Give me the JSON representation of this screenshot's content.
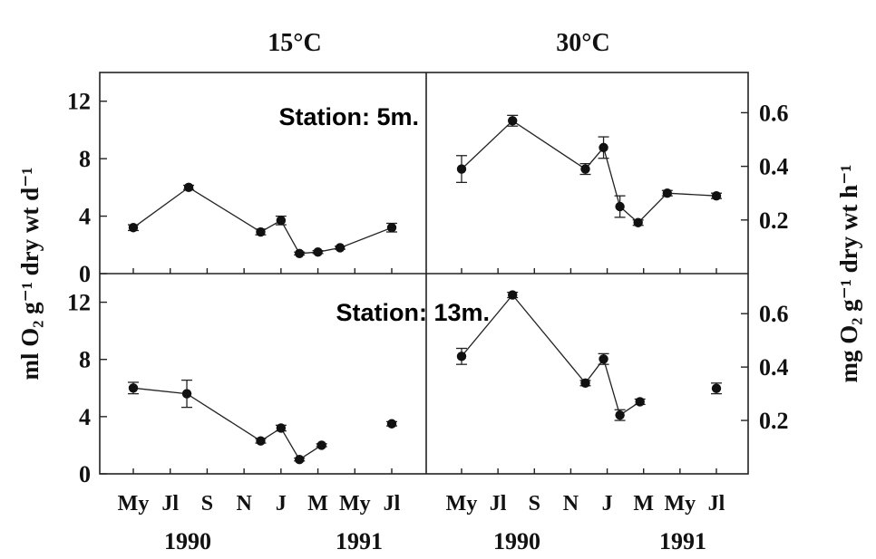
{
  "figure": {
    "column_headers": [
      "15°C",
      "30°C"
    ],
    "left_axis_label": "ml O₂ g⁻¹ dry wt d⁻¹",
    "right_axis_label": "mg O₂ g⁻¹ dry wt h⁻¹",
    "x_tick_labels": [
      "My",
      "Jl",
      "S",
      "N",
      "J",
      "M",
      "My",
      "Jl"
    ],
    "year_labels": [
      "1990",
      "1991"
    ]
  },
  "chart_data": [
    {
      "type": "line",
      "panel": "top-left",
      "title": "15°C",
      "annotation": "",
      "y_axis": "left",
      "ylim": [
        0,
        14
      ],
      "yticks": [
        0,
        4,
        8,
        12
      ],
      "x": [
        0,
        2,
        4,
        6,
        8,
        10,
        12,
        14
      ],
      "x_tick_labels": [
        "My",
        "Jl",
        "S",
        "N",
        "J",
        "M",
        "My",
        "Jl"
      ],
      "series": [
        {
          "points": [
            {
              "month": 0.0,
              "value": 3.2,
              "err": 0.2
            },
            {
              "month": 3.0,
              "value": 6.0,
              "err": 0.15
            },
            {
              "month": 6.9,
              "value": 2.9,
              "err": 0.2
            },
            {
              "month": 8.0,
              "value": 3.7,
              "err": 0.3
            },
            {
              "month": 9.0,
              "value": 1.4,
              "err": 0.1
            },
            {
              "month": 10.0,
              "value": 1.5,
              "err": 0.1
            },
            {
              "month": 11.2,
              "value": 1.8,
              "err": 0.1
            },
            {
              "month": 14.0,
              "value": 3.2,
              "err": 0.3
            }
          ],
          "segments": [
            [
              0,
              7
            ]
          ]
        }
      ]
    },
    {
      "type": "line",
      "panel": "top-right",
      "title": "30°C",
      "annotation": "Station: 5m.",
      "y_axis": "right",
      "ylim": [
        0,
        0.75
      ],
      "yticks": [
        0.2,
        0.4,
        0.6
      ],
      "x": [
        0,
        2,
        4,
        6,
        8,
        10,
        12,
        14
      ],
      "x_tick_labels": [
        "My",
        "Jl",
        "S",
        "N",
        "J",
        "M",
        "My",
        "Jl"
      ],
      "series": [
        {
          "points": [
            {
              "month": 0.0,
              "value": 0.39,
              "err": 0.05
            },
            {
              "month": 2.8,
              "value": 0.57,
              "err": 0.02
            },
            {
              "month": 6.8,
              "value": 0.39,
              "err": 0.02
            },
            {
              "month": 7.8,
              "value": 0.47,
              "err": 0.04
            },
            {
              "month": 8.7,
              "value": 0.25,
              "err": 0.04
            },
            {
              "month": 9.7,
              "value": 0.19,
              "err": 0.01
            },
            {
              "month": 11.3,
              "value": 0.3,
              "err": 0.01
            },
            {
              "month": 14.0,
              "value": 0.29,
              "err": 0.01
            }
          ],
          "segments": [
            [
              0,
              7
            ]
          ]
        }
      ]
    },
    {
      "type": "line",
      "panel": "bottom-left",
      "annotation": "",
      "y_axis": "left",
      "ylim": [
        0,
        14
      ],
      "yticks": [
        0,
        4,
        8,
        12
      ],
      "x": [
        0,
        2,
        4,
        6,
        8,
        10,
        12,
        14
      ],
      "x_tick_labels": [
        "My",
        "Jl",
        "S",
        "N",
        "J",
        "M",
        "My",
        "Jl"
      ],
      "series": [
        {
          "points": [
            {
              "month": 0.0,
              "value": 6.0,
              "err": 0.4
            },
            {
              "month": 2.9,
              "value": 5.6,
              "err": 0.95
            },
            {
              "month": 6.9,
              "value": 2.3,
              "err": 0.15
            },
            {
              "month": 8.0,
              "value": 3.2,
              "err": 0.2
            },
            {
              "month": 9.0,
              "value": 1.0,
              "err": 0.1
            },
            {
              "month": 10.2,
              "value": 2.0,
              "err": 0.1
            },
            {
              "month": 14.0,
              "value": 3.5,
              "err": 0.15
            }
          ],
          "segments": [
            [
              0,
              5
            ]
          ]
        }
      ]
    },
    {
      "type": "line",
      "panel": "bottom-right",
      "annotation": "Station: 13m.",
      "y_axis": "right",
      "ylim": [
        0,
        0.75
      ],
      "yticks": [
        0.2,
        0.4,
        0.6
      ],
      "x": [
        0,
        2,
        4,
        6,
        8,
        10,
        12,
        14
      ],
      "x_tick_labels": [
        "My",
        "Jl",
        "S",
        "N",
        "J",
        "M",
        "My",
        "Jl"
      ],
      "series": [
        {
          "points": [
            {
              "month": 0.0,
              "value": 0.44,
              "err": 0.03
            },
            {
              "month": 2.8,
              "value": 0.67,
              "err": 0.01
            },
            {
              "month": 6.8,
              "value": 0.34,
              "err": 0.01
            },
            {
              "month": 7.8,
              "value": 0.43,
              "err": 0.02
            },
            {
              "month": 8.7,
              "value": 0.22,
              "err": 0.02
            },
            {
              "month": 9.8,
              "value": 0.27,
              "err": 0.01
            },
            {
              "month": 14.0,
              "value": 0.32,
              "err": 0.02
            }
          ],
          "segments": [
            [
              0,
              5
            ]
          ]
        }
      ]
    }
  ]
}
